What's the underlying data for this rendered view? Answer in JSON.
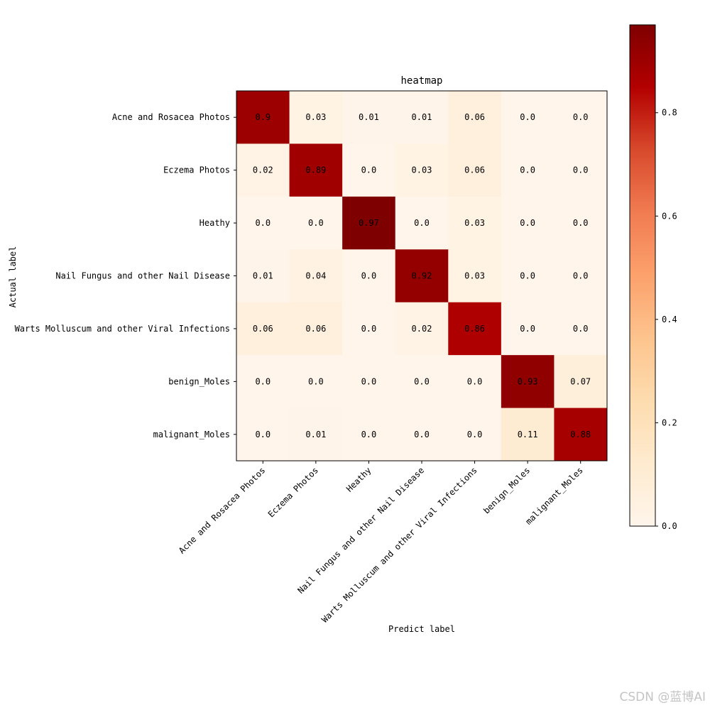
{
  "chart_data": {
    "type": "heatmap",
    "title": "heatmap",
    "xlabel": "Predict label",
    "ylabel": "Actual label",
    "x_categories": [
      "Acne and Rosacea Photos",
      "Eczema Photos",
      "Heathy",
      "Nail Fungus and other Nail Disease",
      "Warts Molluscum and other Viral Infections",
      "benign_Moles",
      "malignant_Moles"
    ],
    "y_categories": [
      "Acne and Rosacea Photos",
      "Eczema Photos",
      "Heathy",
      "Nail Fungus and other Nail Disease",
      "Warts Molluscum and other Viral Infections",
      "benign_Moles",
      "malignant_Moles"
    ],
    "values": [
      [
        0.9,
        0.03,
        0.01,
        0.01,
        0.06,
        0.0,
        0.0
      ],
      [
        0.02,
        0.89,
        0.0,
        0.03,
        0.06,
        0.0,
        0.0
      ],
      [
        0.0,
        0.0,
        0.97,
        0.0,
        0.03,
        0.0,
        0.0
      ],
      [
        0.01,
        0.04,
        0.0,
        0.92,
        0.03,
        0.0,
        0.0
      ],
      [
        0.06,
        0.06,
        0.0,
        0.02,
        0.86,
        0.0,
        0.0
      ],
      [
        0.0,
        0.0,
        0.0,
        0.0,
        0.0,
        0.93,
        0.07
      ],
      [
        0.0,
        0.01,
        0.0,
        0.0,
        0.0,
        0.11,
        0.88
      ]
    ],
    "cell_labels": [
      [
        "0.9",
        "0.03",
        "0.01",
        "0.01",
        "0.06",
        "0.0",
        "0.0"
      ],
      [
        "0.02",
        "0.89",
        "0.0",
        "0.03",
        "0.06",
        "0.0",
        "0.0"
      ],
      [
        "0.0",
        "0.0",
        "0.97",
        "0.0",
        "0.03",
        "0.0",
        "0.0"
      ],
      [
        "0.01",
        "0.04",
        "0.0",
        "0.92",
        "0.03",
        "0.0",
        "0.0"
      ],
      [
        "0.06",
        "0.06",
        "0.0",
        "0.02",
        "0.86",
        "0.0",
        "0.0"
      ],
      [
        "0.0",
        "0.0",
        "0.0",
        "0.0",
        "0.0",
        "0.93",
        "0.07"
      ],
      [
        "0.0",
        "0.01",
        "0.0",
        "0.0",
        "0.0",
        "0.11",
        "0.88"
      ]
    ],
    "colormap": "OrRd",
    "colorbar": {
      "range": [
        0.0,
        0.97
      ],
      "ticks": [
        0.0,
        0.2,
        0.4,
        0.6,
        0.8
      ],
      "tick_labels": [
        "0.0",
        "0.2",
        "0.4",
        "0.6",
        "0.8"
      ]
    },
    "grid": false,
    "colorbar_position": "right"
  },
  "watermark": "CSDN @蓝博AI"
}
